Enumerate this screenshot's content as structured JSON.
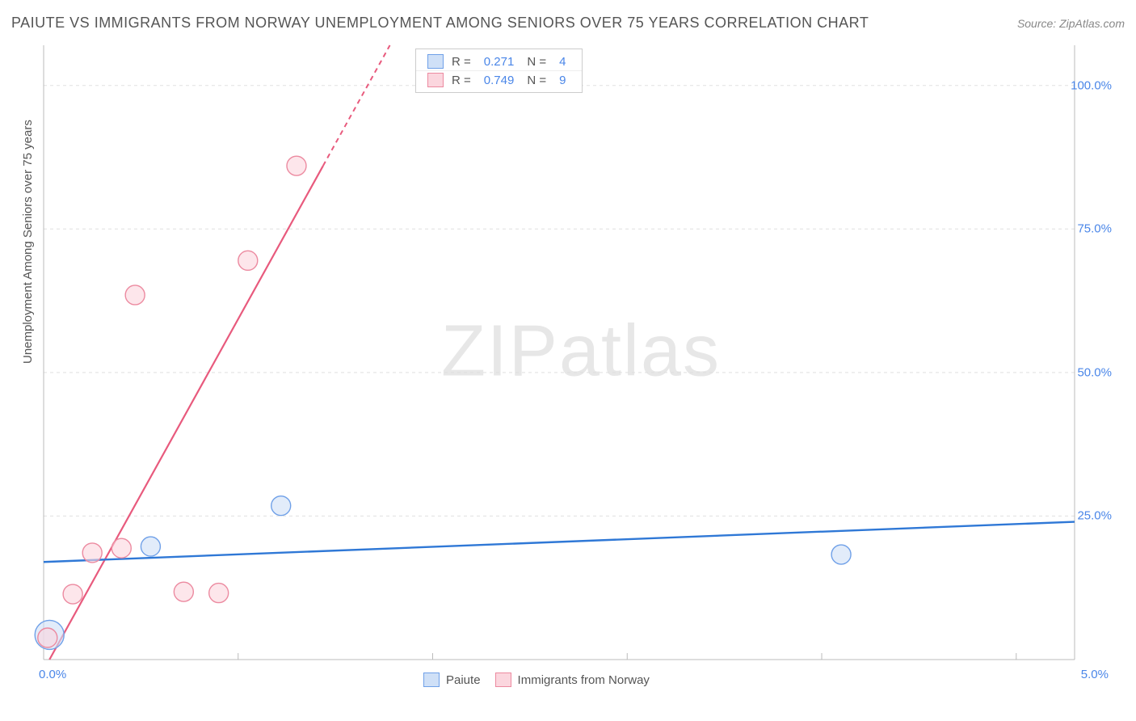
{
  "title": "PAIUTE VS IMMIGRANTS FROM NORWAY UNEMPLOYMENT AMONG SENIORS OVER 75 YEARS CORRELATION CHART",
  "source_label": "Source: ZipAtlas.com",
  "ylabel": "Unemployment Among Seniors over 75 years",
  "watermark_bold": "ZIP",
  "watermark_thin": "atlas",
  "chart": {
    "type": "scatter-correlation",
    "background_color": "#ffffff",
    "grid_color": "#e0e0e0",
    "axis_color": "#bbbbbb",
    "xlim": [
      0.0,
      5.3
    ],
    "ylim": [
      0.0,
      107.0
    ],
    "x_origin_label": "0.0%",
    "x_max_label": "5.0%",
    "yticks": [
      {
        "v": 25.0,
        "label": "25.0%"
      },
      {
        "v": 50.0,
        "label": "50.0%"
      },
      {
        "v": 75.0,
        "label": "75.0%"
      },
      {
        "v": 100.0,
        "label": "100.0%"
      }
    ],
    "xticks_minor": [
      1.0,
      2.0,
      3.0,
      4.0,
      5.0
    ],
    "legend_top": [
      {
        "swatch_fill": "#cfe0f7",
        "swatch_stroke": "#6fa0e8",
        "r_label": "R =",
        "r_value": "0.271",
        "n_label": "N =",
        "n_value": "4"
      },
      {
        "swatch_fill": "#fbd6de",
        "swatch_stroke": "#ec8aa0",
        "r_label": "R =",
        "r_value": "0.749",
        "n_label": "N =",
        "n_value": "9"
      }
    ],
    "legend_bottom": [
      {
        "swatch_fill": "#cfe0f7",
        "swatch_stroke": "#6fa0e8",
        "label": "Paiute"
      },
      {
        "swatch_fill": "#fbd6de",
        "swatch_stroke": "#ec8aa0",
        "label": "Immigrants from Norway"
      }
    ],
    "series": [
      {
        "name": "Paiute",
        "color_fill": "#cfe0f7",
        "color_stroke": "#6fa0e8",
        "line_color": "#2f78d6",
        "marker_r": 12,
        "points": [
          {
            "x": 0.03,
            "y": 4.3,
            "r": 18
          },
          {
            "x": 0.55,
            "y": 19.7
          },
          {
            "x": 1.22,
            "y": 26.8
          },
          {
            "x": 4.1,
            "y": 18.3
          }
        ],
        "trend": {
          "x1": 0.0,
          "y1": 17.0,
          "x2": 5.3,
          "y2": 24.0
        }
      },
      {
        "name": "Immigrants from Norway",
        "color_fill": "#fbd6de",
        "color_stroke": "#ec8aa0",
        "line_color": "#e85a7d",
        "marker_r": 12,
        "points": [
          {
            "x": 0.02,
            "y": 3.8
          },
          {
            "x": 0.15,
            "y": 11.4
          },
          {
            "x": 0.25,
            "y": 18.6
          },
          {
            "x": 0.4,
            "y": 19.4
          },
          {
            "x": 0.72,
            "y": 11.8
          },
          {
            "x": 0.9,
            "y": 11.6
          },
          {
            "x": 0.47,
            "y": 63.5
          },
          {
            "x": 1.05,
            "y": 69.5
          },
          {
            "x": 1.3,
            "y": 86.0
          }
        ],
        "trend": {
          "x1": 0.03,
          "y1": 0.0,
          "x2": 1.78,
          "y2": 107.0
        },
        "trend_dashed_from_y": 86.0
      }
    ]
  }
}
